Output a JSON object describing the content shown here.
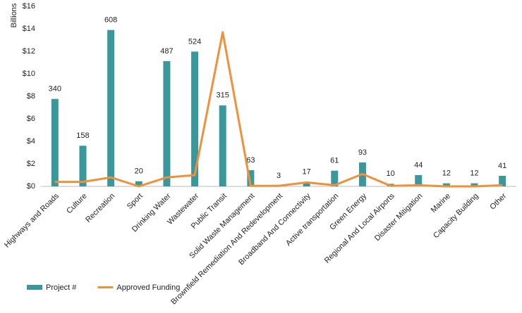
{
  "chart_data": {
    "type": "bar",
    "y_label": "Billions",
    "categories": [
      "Highways and Roads",
      "Culture",
      "Recreation",
      "Sport",
      "Drinking Water",
      "Wastewater",
      "Public Transit",
      "Solid Waste Management",
      "Brownfield Remediation And Redevelopment",
      "Broadband And Connectivity",
      "Active transportation",
      "Green Energy",
      "Regional And Local Airports",
      "Disaster Mitigation",
      "Marine",
      "Capacity Building",
      "Other"
    ],
    "series": [
      {
        "name": "Project #",
        "type": "bar",
        "axis": "y2",
        "color": "#3a989d",
        "values": [
          340,
          158,
          608,
          20,
          487,
          524,
          315,
          63,
          3,
          17,
          61,
          93,
          10,
          44,
          12,
          12,
          41
        ]
      },
      {
        "name": "Approved Funding",
        "type": "line",
        "color": "#f0913a",
        "values": [
          0.4,
          0.4,
          0.8,
          0.0,
          0.8,
          1.0,
          13.7,
          0.05,
          0.05,
          0.35,
          0.1,
          1.1,
          0.05,
          0.1,
          0.0,
          0.0,
          0.1
        ]
      }
    ],
    "ylim": [
      0,
      16
    ],
    "yticks": [
      {
        "value": 0,
        "label": "$0"
      },
      {
        "value": 2,
        "label": "$2"
      },
      {
        "value": 4,
        "label": "$4"
      },
      {
        "value": 6,
        "label": "$6"
      },
      {
        "value": 8,
        "label": "$8"
      },
      {
        "value": 10,
        "label": "$10"
      },
      {
        "value": 12,
        "label": "$12"
      },
      {
        "value": 14,
        "label": "$14"
      },
      {
        "value": 16,
        "label": "$16"
      }
    ],
    "y2lim": [
      0,
      700
    ],
    "grid": false,
    "legend": "bottom-left"
  }
}
